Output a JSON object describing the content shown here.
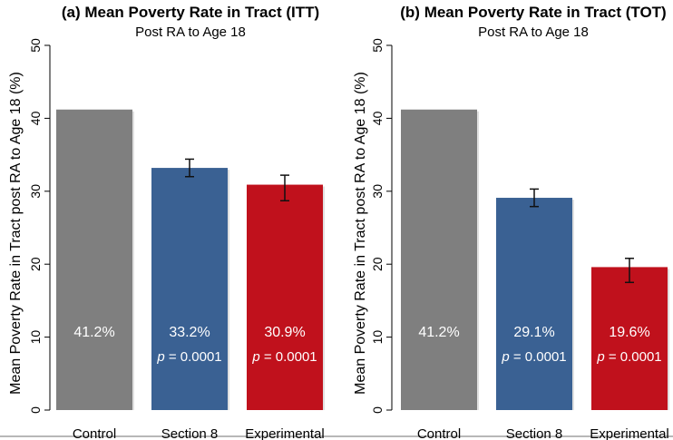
{
  "chart_data": [
    {
      "type": "bar",
      "title": "(a)  Mean Poverty Rate in Tract (ITT)",
      "subtitle": "Post RA to Age 18",
      "ylabel": "Mean Poverty Rate in Tract post RA to Age 18 (%)",
      "xlabel": "",
      "ylim": [
        0,
        50
      ],
      "yticks": [
        0,
        10,
        20,
        30,
        40,
        50
      ],
      "grid": false,
      "categories": [
        "Control",
        "Section 8",
        "Experimental"
      ],
      "values": [
        41.2,
        33.2,
        30.9
      ],
      "error_low": [
        null,
        32.0,
        28.7
      ],
      "error_high": [
        null,
        34.4,
        32.2
      ],
      "value_labels": [
        "41.2%",
        "33.2%",
        "30.9%"
      ],
      "p_labels": [
        "",
        "p = 0.0001",
        "p = 0.0001"
      ],
      "colors": [
        "#7f7f7f",
        "#3a6193",
        "#c0111c"
      ]
    },
    {
      "type": "bar",
      "title": "(b) Mean Poverty Rate in Tract (TOT)",
      "subtitle": "Post RA to Age 18",
      "ylabel": "Mean Poverty Rate in Tract post RA to Age 18 (%)",
      "xlabel": "",
      "ylim": [
        0,
        50
      ],
      "yticks": [
        0,
        10,
        20,
        30,
        40,
        50
      ],
      "grid": false,
      "categories": [
        "Control",
        "Section 8",
        "Experimental"
      ],
      "values": [
        41.2,
        29.1,
        19.6
      ],
      "error_low": [
        null,
        27.9,
        17.5
      ],
      "error_high": [
        null,
        30.3,
        20.8
      ],
      "value_labels": [
        "41.2%",
        "29.1%",
        "19.6%"
      ],
      "p_labels": [
        "",
        "p = 0.0001",
        "p = 0.0001"
      ],
      "colors": [
        "#7f7f7f",
        "#3a6193",
        "#c0111c"
      ]
    }
  ]
}
